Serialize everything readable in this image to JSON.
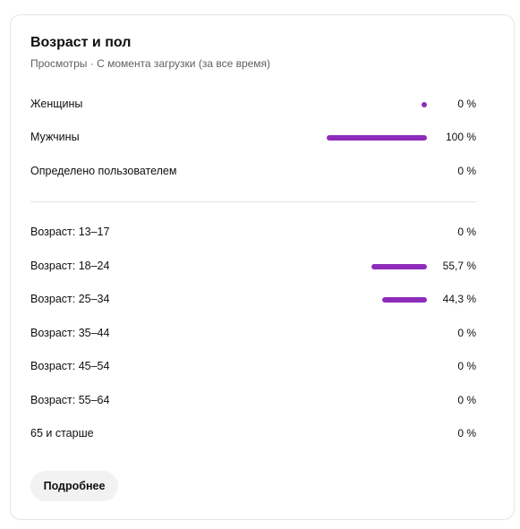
{
  "card": {
    "title": "Возраст и пол",
    "subtitle": "Просмотры · С момента загрузки (за все время)"
  },
  "gender": [
    {
      "label": "Женщины",
      "value": "0 %",
      "fraction": 0.0
    },
    {
      "label": "Мужчины",
      "value": "100 %",
      "fraction": 1.0
    },
    {
      "label": "Определено пользователем",
      "value": "0 %",
      "fraction": 0.0
    }
  ],
  "age": [
    {
      "label": "Возраст: 13–17",
      "value": "0 %",
      "fraction": 0.0
    },
    {
      "label": "Возраст: 18–24",
      "value": "55,7 %",
      "fraction": 0.557
    },
    {
      "label": "Возраст: 25–34",
      "value": "44,3 %",
      "fraction": 0.443
    },
    {
      "label": "Возраст: 35–44",
      "value": "0 %",
      "fraction": 0.0
    },
    {
      "label": "Возраст: 45–54",
      "value": "0 %",
      "fraction": 0.0
    },
    {
      "label": "Возраст: 55–64",
      "value": "0 %",
      "fraction": 0.0
    },
    {
      "label": "65 и старше",
      "value": "0 %",
      "fraction": 0.0
    }
  ],
  "actions": {
    "more_label": "Подробнее"
  },
  "colors": {
    "bar": "#8e2bbb"
  }
}
